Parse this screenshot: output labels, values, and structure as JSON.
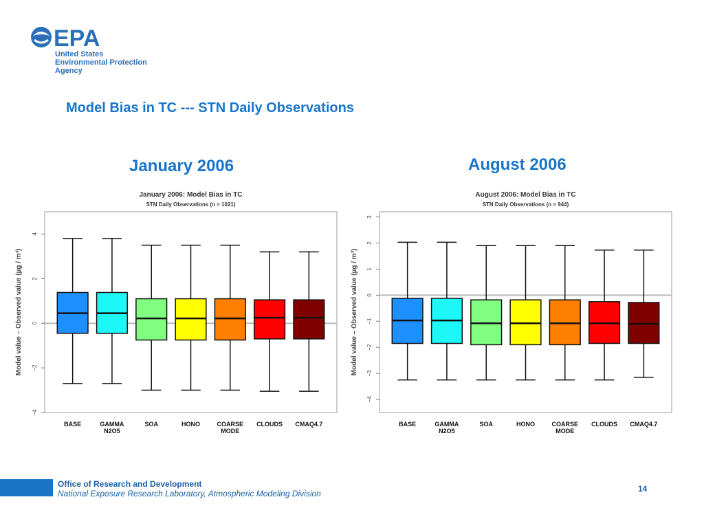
{
  "header": {
    "logo_mark": "EPA",
    "logo_lines": [
      "United States",
      "Environmental Protection",
      "Agency"
    ],
    "slide_title": "Model Bias in TC --- STN Daily Observations"
  },
  "panels": [
    {
      "heading": "January 2006"
    },
    {
      "heading": "August 2006"
    }
  ],
  "chart_data": [
    {
      "type": "boxplot",
      "title": "January  2006: Model Bias in TC",
      "subtitle": "STN Daily Observations (n = 1021)",
      "ylabel": "Model value – Observed value  (µg / m³)",
      "ylim": [
        -4,
        5
      ],
      "yticks": [
        -4,
        -2,
        0,
        2,
        4
      ],
      "reference_line": 0,
      "categories": [
        "BASE",
        "GAMMA\nN2O5",
        "SOA",
        "HONO",
        "COARSE\nMODE",
        "CLOUDS",
        "CMAQ4.7"
      ],
      "colors": [
        "#1e8fff",
        "#1ef7f7",
        "#80ff80",
        "#ffff00",
        "#ff7f00",
        "#ff0000",
        "#800000"
      ],
      "boxes": [
        {
          "whisker_low": -2.7,
          "q1": -0.45,
          "median": 0.45,
          "q3": 1.38,
          "whisker_high": 3.8
        },
        {
          "whisker_low": -2.7,
          "q1": -0.45,
          "median": 0.45,
          "q3": 1.38,
          "whisker_high": 3.8
        },
        {
          "whisker_low": -3.0,
          "q1": -0.75,
          "median": 0.22,
          "q3": 1.1,
          "whisker_high": 3.5
        },
        {
          "whisker_low": -3.0,
          "q1": -0.75,
          "median": 0.22,
          "q3": 1.1,
          "whisker_high": 3.5
        },
        {
          "whisker_low": -3.0,
          "q1": -0.75,
          "median": 0.22,
          "q3": 1.1,
          "whisker_high": 3.5
        },
        {
          "whisker_low": -3.05,
          "q1": -0.7,
          "median": 0.25,
          "q3": 1.05,
          "whisker_high": 3.2
        },
        {
          "whisker_low": -3.05,
          "q1": -0.7,
          "median": 0.25,
          "q3": 1.05,
          "whisker_high": 3.2
        }
      ]
    },
    {
      "type": "boxplot",
      "title": "August  2006: Model Bias in TC",
      "subtitle": "STN Daily Observations (n = 944)",
      "ylabel": "Model value – Observed value  (µg / m³)",
      "ylim": [
        -4.5,
        3.2
      ],
      "yticks": [
        -4,
        -3,
        -2,
        -1,
        0,
        1,
        2,
        3
      ],
      "reference_line": 0,
      "categories": [
        "BASE",
        "GAMMA\nN2O5",
        "SOA",
        "HONO",
        "COARSE\nMODE",
        "CLOUDS",
        "CMAQ4.7"
      ],
      "colors": [
        "#1e8fff",
        "#1ef7f7",
        "#80ff80",
        "#ffff00",
        "#ff7f00",
        "#ff0000",
        "#800000"
      ],
      "boxes": [
        {
          "whisker_low": -3.25,
          "q1": -1.85,
          "median": -0.97,
          "q3": -0.12,
          "whisker_high": 2.03
        },
        {
          "whisker_low": -3.25,
          "q1": -1.85,
          "median": -0.97,
          "q3": -0.12,
          "whisker_high": 2.03
        },
        {
          "whisker_low": -3.25,
          "q1": -1.9,
          "median": -1.08,
          "q3": -0.18,
          "whisker_high": 1.9
        },
        {
          "whisker_low": -3.25,
          "q1": -1.9,
          "median": -1.08,
          "q3": -0.18,
          "whisker_high": 1.9
        },
        {
          "whisker_low": -3.25,
          "q1": -1.9,
          "median": -1.08,
          "q3": -0.18,
          "whisker_high": 1.9
        },
        {
          "whisker_low": -3.25,
          "q1": -1.85,
          "median": -1.08,
          "q3": -0.25,
          "whisker_high": 1.73
        },
        {
          "whisker_low": -3.15,
          "q1": -1.85,
          "median": -1.1,
          "q3": -0.28,
          "whisker_high": 1.73
        }
      ]
    }
  ],
  "footer": {
    "org": "Office of Research and Development",
    "lab": "National Exposure Research Laboratory, Atmospheric Modeling Division",
    "page": "14"
  }
}
